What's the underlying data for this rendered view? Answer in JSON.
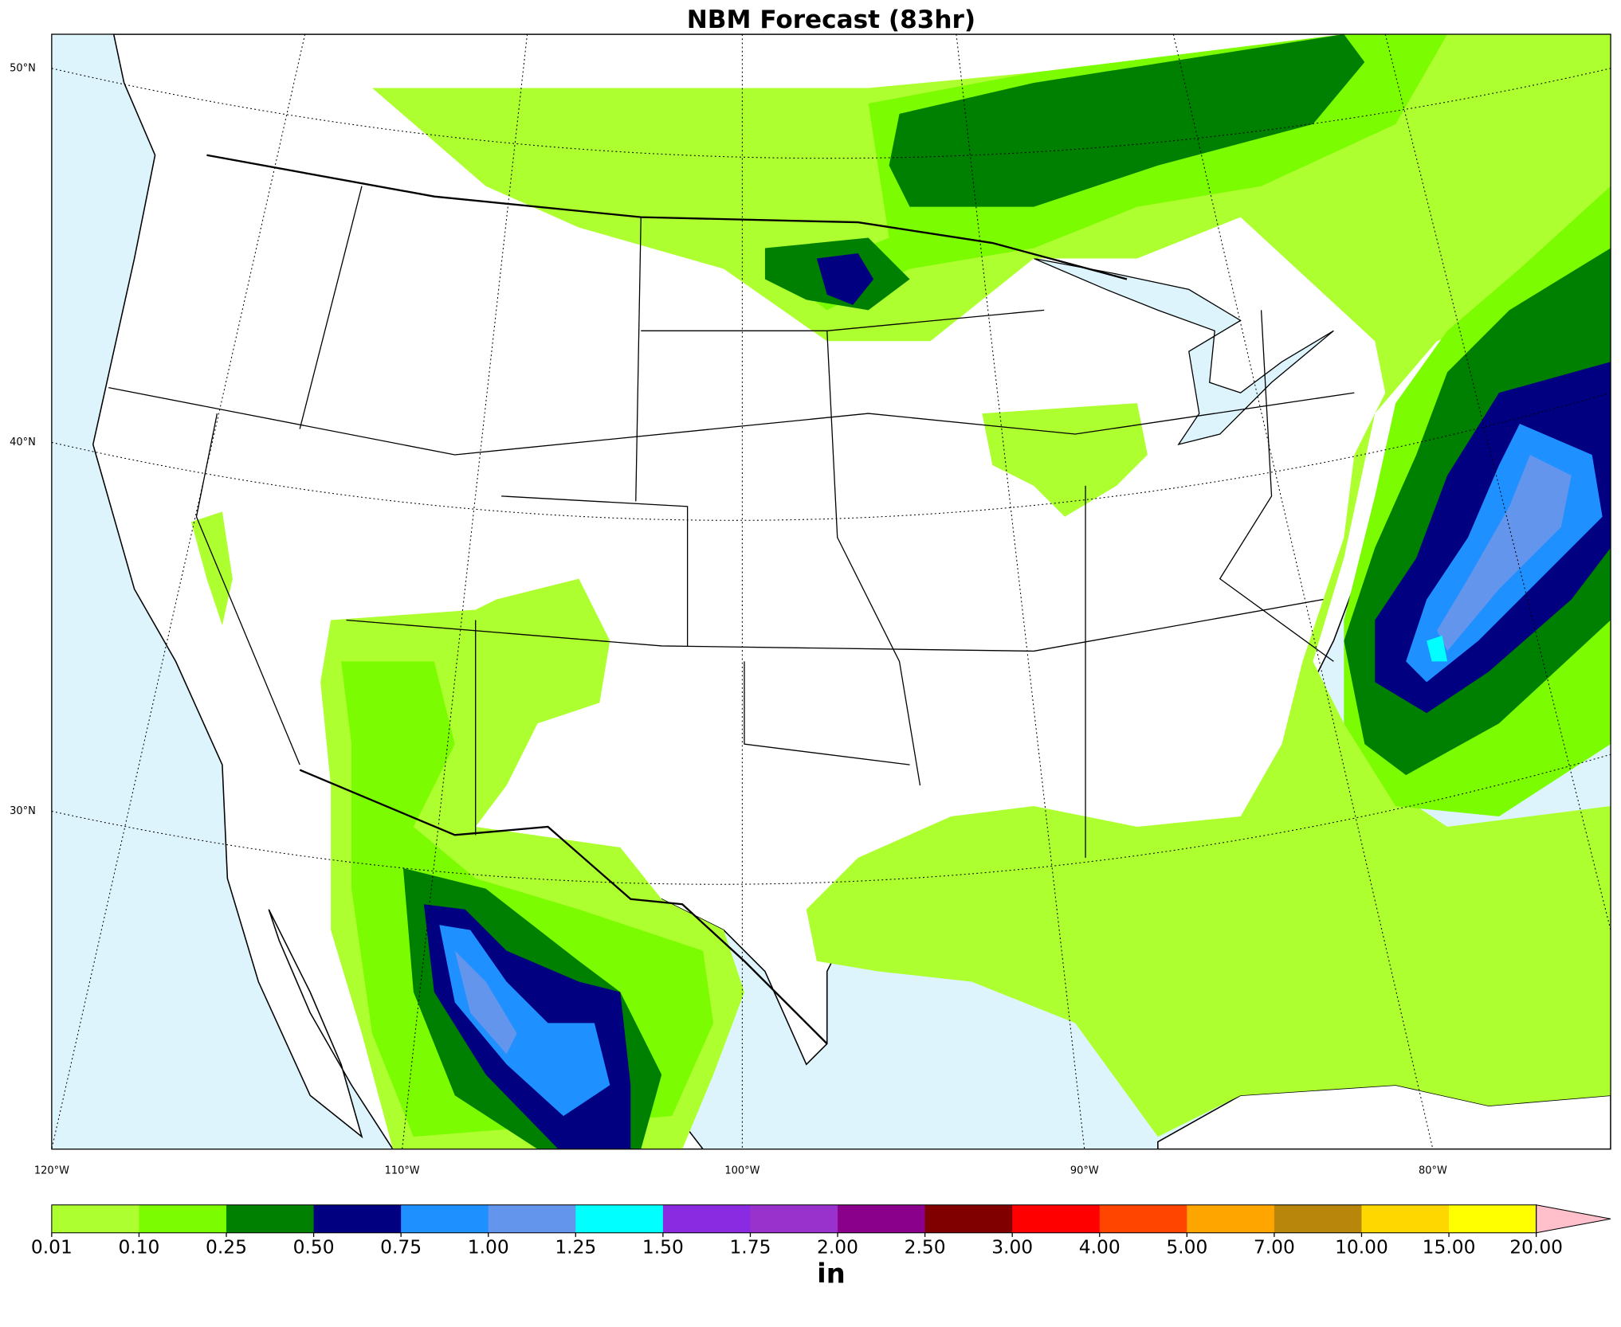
{
  "title": "NBM Forecast (83hr)",
  "map": {
    "lat_labels": [
      "50°N",
      "40°N",
      "30°N"
    ],
    "lon_labels": [
      "120°W",
      "110°W",
      "100°W",
      "90°W",
      "80°W"
    ]
  },
  "colorbar": {
    "levels": [
      {
        "value": 0.01,
        "label": "0.01"
      },
      {
        "value": 0.1,
        "label": "0.10"
      },
      {
        "value": 0.25,
        "label": "0.25"
      },
      {
        "value": 0.5,
        "label": "0.50"
      },
      {
        "value": 0.75,
        "label": "0.75"
      },
      {
        "value": 1,
        "label": "1.00"
      },
      {
        "value": 1.25,
        "label": "1.25"
      },
      {
        "value": 1.5,
        "label": "1.50"
      },
      {
        "value": 1.75,
        "label": "1.75"
      },
      {
        "value": 2,
        "label": "2.00"
      },
      {
        "value": 2.5,
        "label": "2.50"
      },
      {
        "value": 3,
        "label": "3.00"
      },
      {
        "value": 4,
        "label": "4.00"
      },
      {
        "value": 5,
        "label": "5.00"
      },
      {
        "value": 7,
        "label": "7.00"
      },
      {
        "value": 10,
        "label": "10.00"
      },
      {
        "value": 15,
        "label": "15.00"
      },
      {
        "value": 20,
        "label": "20.00"
      }
    ],
    "colors": [
      "#adff2f",
      "#7cfc00",
      "#008000",
      "#000080",
      "#1e90ff",
      "#6495ed",
      "#00ffff",
      "#8a2be2",
      "#9932cc",
      "#8b008b",
      "#800000",
      "#ff0000",
      "#ff4500",
      "#ffa500",
      "#b8860b",
      "#ffd700",
      "#ffff00"
    ],
    "extend_color": "#ffc0cb",
    "unit": "in"
  }
}
